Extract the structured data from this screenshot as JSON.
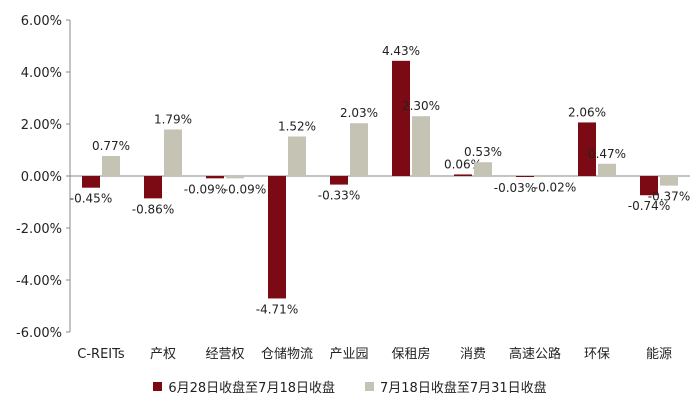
{
  "chart_data": {
    "type": "bar",
    "title": "",
    "xlabel": "",
    "ylabel": "",
    "categories": [
      "C-REITs",
      "产权",
      "经营权",
      "仓储物流",
      "产业园",
      "保租房",
      "消费",
      "高速公路",
      "环保",
      "能源"
    ],
    "series": [
      {
        "name": "6月28日收盘至7月18日收盘",
        "color": "#7b0a14",
        "values": [
          -0.45,
          -0.86,
          -0.09,
          -4.71,
          -0.33,
          4.43,
          0.06,
          -0.03,
          2.06,
          -0.74
        ],
        "labels": [
          "-0.45%",
          "-0.86%",
          "-0.09%",
          "-4.71%",
          "-0.33%",
          "4.43%",
          "0.06%",
          "-0.03%",
          "2.06%",
          "-0.74%"
        ]
      },
      {
        "name": "7月18日收盘至7月31日收盘",
        "color": "#c4c3b4",
        "values": [
          0.77,
          1.79,
          -0.09,
          1.52,
          2.03,
          2.3,
          0.53,
          -0.02,
          0.47,
          -0.37
        ],
        "labels": [
          "0.77%",
          "1.79%",
          "-0.09%",
          "1.52%",
          "2.03%",
          "2.30%",
          "0.53%",
          "-0.02%",
          "0.47%",
          "-0.37%"
        ]
      }
    ],
    "ylim": [
      -6,
      6
    ],
    "yticks": [
      6,
      4,
      2,
      0,
      -2,
      -4,
      -6
    ],
    "ytick_labels": [
      "6.00%",
      "4.00%",
      "2.00%",
      "0.00%",
      "-2.00%",
      "-4.00%",
      "-6.00%"
    ],
    "grid": false,
    "legend_position": "bottom"
  }
}
